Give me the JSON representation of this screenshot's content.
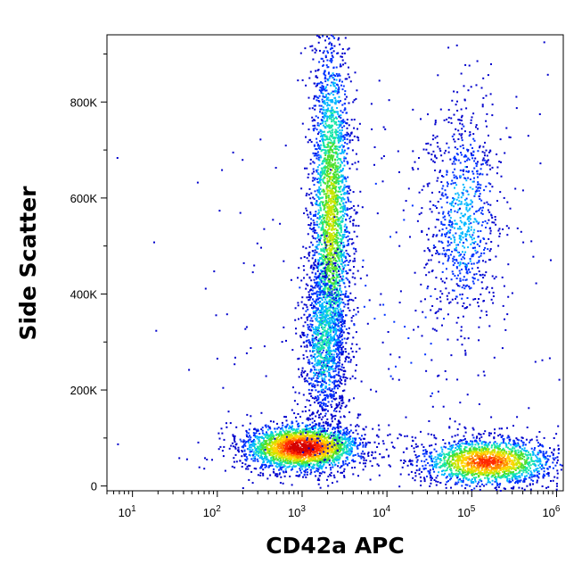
{
  "chart_data": {
    "type": "scatter",
    "subtype": "flow-cytometry-density-dot-plot",
    "title": "",
    "xlabel": "CD42a APC",
    "ylabel": "Side Scatter",
    "x_scale": "log",
    "xlim": [
      5,
      1200000
    ],
    "ylim": [
      -10000,
      940000
    ],
    "x_ticks": [
      {
        "base": "10",
        "exp": "1",
        "value": 10
      },
      {
        "base": "10",
        "exp": "2",
        "value": 100
      },
      {
        "base": "10",
        "exp": "3",
        "value": 1000
      },
      {
        "base": "10",
        "exp": "4",
        "value": 10000
      },
      {
        "base": "10",
        "exp": "5",
        "value": 100000
      },
      {
        "base": "10",
        "exp": "6",
        "value": 1000000
      }
    ],
    "y_ticks": [
      {
        "label": "0",
        "value": 0
      },
      {
        "label": "200K",
        "value": 200000
      },
      {
        "label": "400K",
        "value": 400000
      },
      {
        "label": "600K",
        "value": 600000
      },
      {
        "label": "800K",
        "value": 800000
      }
    ],
    "grid": false,
    "legend": "none",
    "colormap": [
      "#0000cc",
      "#0033ff",
      "#00b7ff",
      "#19e6a8",
      "#4ddf30",
      "#c8e600",
      "#ffd400",
      "#ff8800",
      "#ff2a00",
      "#d40000"
    ],
    "populations": [
      {
        "x_center": 1000,
        "y_center": 80000,
        "x_spread_decades": 0.35,
        "y_spread": 25000,
        "peak_density": 1.0,
        "share": 0.27
      },
      {
        "x_center": 2200,
        "y_center": 560000,
        "x_spread_decades": 0.12,
        "y_spread": 200000,
        "peak_density": 0.55,
        "share": 0.3
      },
      {
        "x_center": 1800,
        "y_center": 300000,
        "x_spread_decades": 0.13,
        "y_spread": 90000,
        "peak_density": 0.35,
        "share": 0.1
      },
      {
        "x_center": 150000,
        "y_center": 50000,
        "x_spread_decades": 0.4,
        "y_spread": 25000,
        "peak_density": 0.85,
        "share": 0.2
      },
      {
        "x_center": 80000,
        "y_center": 560000,
        "x_spread_decades": 0.22,
        "y_spread": 120000,
        "peak_density": 0.25,
        "share": 0.09
      },
      {
        "x_center": 10000,
        "y_center": 400000,
        "x_spread_decades": 1.2,
        "y_spread": 250000,
        "peak_density": 0.1,
        "share": 0.04
      }
    ]
  }
}
